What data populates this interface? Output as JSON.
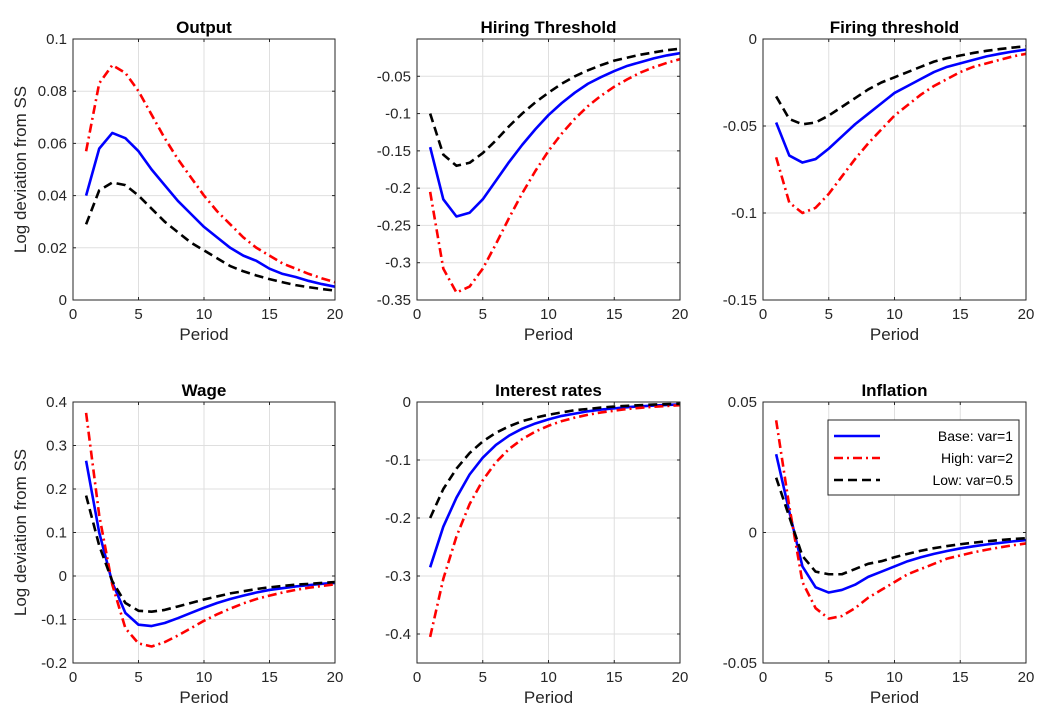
{
  "chart_data": [
    {
      "type": "line",
      "title": "Output",
      "xlabel": "Period",
      "ylabel": "Log deviation from SS",
      "xlim": [
        0,
        20
      ],
      "ylim": [
        0,
        0.1
      ],
      "xticks": [
        "0",
        "5",
        "10",
        "15",
        "20"
      ],
      "yticks": [
        "0",
        "0.02",
        "0.04",
        "0.06",
        "0.08",
        "0.1"
      ],
      "grid": true,
      "x": [
        1,
        2,
        3,
        4,
        5,
        6,
        7,
        8,
        9,
        10,
        11,
        12,
        13,
        14,
        15,
        16,
        17,
        18,
        19,
        20
      ],
      "series": [
        {
          "color": "#0000ff",
          "dash": "solid",
          "values": [
            0.04,
            0.058,
            0.064,
            0.062,
            0.057,
            0.05,
            0.044,
            0.038,
            0.033,
            0.028,
            0.024,
            0.02,
            0.017,
            0.015,
            0.012,
            0.01,
            0.0088,
            0.0073,
            0.0061,
            0.0051
          ]
        },
        {
          "color": "#ff0000",
          "dash": "dashdot",
          "values": [
            0.057,
            0.083,
            0.09,
            0.087,
            0.08,
            0.071,
            0.062,
            0.054,
            0.047,
            0.04,
            0.034,
            0.029,
            0.024,
            0.02,
            0.017,
            0.014,
            0.012,
            0.01,
            0.0083,
            0.0068
          ]
        },
        {
          "color": "#000000",
          "dash": "dashed",
          "values": [
            0.029,
            0.042,
            0.045,
            0.044,
            0.04,
            0.035,
            0.03,
            0.026,
            0.022,
            0.019,
            0.016,
            0.013,
            0.011,
            0.0094,
            0.008,
            0.0068,
            0.0057,
            0.0049,
            0.0042,
            0.0036
          ]
        }
      ]
    },
    {
      "type": "line",
      "title": "Hiring Threshold",
      "xlabel": "Period",
      "ylabel": "",
      "xlim": [
        0,
        20
      ],
      "ylim": [
        -0.35,
        0
      ],
      "xticks": [
        "0",
        "5",
        "10",
        "15",
        "20"
      ],
      "yticks": [
        "-0.35",
        "-0.3",
        "-0.25",
        "-0.2",
        "-0.15",
        "-0.1",
        "-0.05"
      ],
      "grid": true,
      "x": [
        1,
        2,
        3,
        4,
        5,
        6,
        7,
        8,
        9,
        10,
        11,
        12,
        13,
        14,
        15,
        16,
        17,
        18,
        19,
        20
      ],
      "series": [
        {
          "color": "#0000ff",
          "dash": "solid",
          "values": [
            -0.145,
            -0.215,
            -0.238,
            -0.233,
            -0.215,
            -0.19,
            -0.165,
            -0.142,
            -0.121,
            -0.102,
            -0.086,
            -0.072,
            -0.06,
            -0.051,
            -0.043,
            -0.036,
            -0.031,
            -0.026,
            -0.022,
            -0.019
          ]
        },
        {
          "color": "#ff0000",
          "dash": "dashdot",
          "values": [
            -0.205,
            -0.308,
            -0.34,
            -0.332,
            -0.308,
            -0.275,
            -0.24,
            -0.207,
            -0.177,
            -0.15,
            -0.127,
            -0.107,
            -0.09,
            -0.076,
            -0.064,
            -0.054,
            -0.045,
            -0.038,
            -0.032,
            -0.027
          ]
        },
        {
          "color": "#000000",
          "dash": "dashed",
          "values": [
            -0.1,
            -0.155,
            -0.17,
            -0.166,
            -0.153,
            -0.136,
            -0.117,
            -0.1,
            -0.085,
            -0.072,
            -0.06,
            -0.05,
            -0.042,
            -0.035,
            -0.029,
            -0.025,
            -0.021,
            -0.018,
            -0.015,
            -0.013
          ]
        }
      ]
    },
    {
      "type": "line",
      "title": "Firing threshold",
      "xlabel": "Period",
      "ylabel": "",
      "xlim": [
        0,
        20
      ],
      "ylim": [
        -0.15,
        0
      ],
      "xticks": [
        "0",
        "5",
        "10",
        "15",
        "20"
      ],
      "yticks": [
        "-0.15",
        "-0.1",
        "-0.05",
        "0"
      ],
      "grid": true,
      "x": [
        1,
        2,
        3,
        4,
        5,
        6,
        7,
        8,
        9,
        10,
        11,
        12,
        13,
        14,
        15,
        16,
        17,
        18,
        19,
        20
      ],
      "series": [
        {
          "color": "#0000ff",
          "dash": "solid",
          "values": [
            -0.048,
            -0.067,
            -0.071,
            -0.069,
            -0.063,
            -0.056,
            -0.049,
            -0.043,
            -0.037,
            -0.031,
            -0.027,
            -0.023,
            -0.019,
            -0.016,
            -0.014,
            -0.012,
            -0.01,
            -0.0085,
            -0.0072,
            -0.0061
          ]
        },
        {
          "color": "#ff0000",
          "dash": "dashdot",
          "values": [
            -0.068,
            -0.094,
            -0.1,
            -0.097,
            -0.089,
            -0.079,
            -0.069,
            -0.06,
            -0.052,
            -0.044,
            -0.038,
            -0.032,
            -0.027,
            -0.023,
            -0.019,
            -0.016,
            -0.014,
            -0.012,
            -0.01,
            -0.0085
          ]
        },
        {
          "color": "#000000",
          "dash": "dashed",
          "values": [
            -0.033,
            -0.046,
            -0.049,
            -0.048,
            -0.044,
            -0.039,
            -0.034,
            -0.029,
            -0.025,
            -0.022,
            -0.019,
            -0.016,
            -0.013,
            -0.011,
            -0.0095,
            -0.008,
            -0.0068,
            -0.0058,
            -0.0049,
            -0.0042
          ]
        }
      ]
    },
    {
      "type": "line",
      "title": "Wage",
      "xlabel": "Period",
      "ylabel": "Log deviation from SS",
      "xlim": [
        0,
        20
      ],
      "ylim": [
        -0.2,
        0.4
      ],
      "xticks": [
        "0",
        "5",
        "10",
        "15",
        "20"
      ],
      "yticks": [
        "-0.2",
        "-0.1",
        "0",
        "0.1",
        "0.2",
        "0.3",
        "0.4"
      ],
      "grid": true,
      "x": [
        1,
        2,
        3,
        4,
        5,
        6,
        7,
        8,
        9,
        10,
        11,
        12,
        13,
        14,
        15,
        16,
        17,
        18,
        19,
        20
      ],
      "series": [
        {
          "color": "#0000ff",
          "dash": "solid",
          "values": [
            0.265,
            0.1,
            -0.015,
            -0.085,
            -0.112,
            -0.115,
            -0.108,
            -0.097,
            -0.085,
            -0.073,
            -0.062,
            -0.053,
            -0.045,
            -0.038,
            -0.032,
            -0.028,
            -0.024,
            -0.021,
            -0.018,
            -0.016
          ]
        },
        {
          "color": "#ff0000",
          "dash": "dashdot",
          "values": [
            0.375,
            0.14,
            -0.02,
            -0.12,
            -0.155,
            -0.162,
            -0.152,
            -0.137,
            -0.12,
            -0.103,
            -0.088,
            -0.075,
            -0.063,
            -0.053,
            -0.045,
            -0.038,
            -0.032,
            -0.027,
            -0.023,
            -0.019
          ]
        },
        {
          "color": "#000000",
          "dash": "dashed",
          "values": [
            0.185,
            0.07,
            -0.012,
            -0.062,
            -0.08,
            -0.082,
            -0.078,
            -0.07,
            -0.062,
            -0.054,
            -0.047,
            -0.04,
            -0.035,
            -0.03,
            -0.026,
            -0.023,
            -0.02,
            -0.018,
            -0.016,
            -0.014
          ]
        }
      ]
    },
    {
      "type": "line",
      "title": "Interest rates",
      "xlabel": "Period",
      "ylabel": "",
      "xlim": [
        0,
        20
      ],
      "ylim": [
        -0.45,
        0
      ],
      "xticks": [
        "0",
        "5",
        "10",
        "15",
        "20"
      ],
      "yticks": [
        "-0.4",
        "-0.3",
        "-0.2",
        "-0.1",
        "0"
      ],
      "grid": true,
      "x": [
        1,
        2,
        3,
        4,
        5,
        6,
        7,
        8,
        9,
        10,
        11,
        12,
        13,
        14,
        15,
        16,
        17,
        18,
        19,
        20
      ],
      "series": [
        {
          "color": "#0000ff",
          "dash": "solid",
          "values": [
            -0.285,
            -0.215,
            -0.165,
            -0.125,
            -0.096,
            -0.074,
            -0.058,
            -0.046,
            -0.037,
            -0.03,
            -0.024,
            -0.02,
            -0.016,
            -0.013,
            -0.011,
            -0.009,
            -0.0074,
            -0.0061,
            -0.005,
            -0.0042
          ]
        },
        {
          "color": "#ff0000",
          "dash": "dashdot",
          "values": [
            -0.405,
            -0.305,
            -0.232,
            -0.176,
            -0.135,
            -0.104,
            -0.081,
            -0.064,
            -0.051,
            -0.041,
            -0.033,
            -0.027,
            -0.022,
            -0.018,
            -0.015,
            -0.012,
            -0.01,
            -0.0083,
            -0.0068,
            -0.0056
          ]
        },
        {
          "color": "#000000",
          "dash": "dashed",
          "values": [
            -0.2,
            -0.15,
            -0.115,
            -0.088,
            -0.068,
            -0.053,
            -0.042,
            -0.033,
            -0.027,
            -0.022,
            -0.018,
            -0.014,
            -0.012,
            -0.0096,
            -0.0079,
            -0.0065,
            -0.0054,
            -0.0045,
            -0.0037,
            -0.0031
          ]
        }
      ]
    },
    {
      "type": "line",
      "title": "Inflation",
      "xlabel": "Period",
      "ylabel": "",
      "xlim": [
        0,
        20
      ],
      "ylim": [
        -0.05,
        0.05
      ],
      "xticks": [
        "0",
        "5",
        "10",
        "15",
        "20"
      ],
      "yticks": [
        "-0.05",
        "0",
        "0.05"
      ],
      "grid": true,
      "legend": {
        "location": "top-right",
        "entries": [
          "Base: var=1",
          "High: var=2",
          "Low: var=0.5"
        ]
      },
      "x": [
        1,
        2,
        3,
        4,
        5,
        6,
        7,
        8,
        9,
        10,
        11,
        12,
        13,
        14,
        15,
        16,
        17,
        18,
        19,
        20
      ],
      "series": [
        {
          "name": "Base: var=1",
          "color": "#0000ff",
          "dash": "solid",
          "values": [
            0.03,
            0.008,
            -0.013,
            -0.021,
            -0.023,
            -0.022,
            -0.02,
            -0.017,
            -0.015,
            -0.013,
            -0.011,
            -0.0095,
            -0.0082,
            -0.0071,
            -0.0061,
            -0.0053,
            -0.0046,
            -0.004,
            -0.0034,
            -0.0029
          ]
        },
        {
          "name": "High: var=2",
          "color": "#ff0000",
          "dash": "dashdot",
          "values": [
            0.043,
            0.01,
            -0.019,
            -0.029,
            -0.033,
            -0.032,
            -0.029,
            -0.025,
            -0.022,
            -0.019,
            -0.016,
            -0.014,
            -0.012,
            -0.01,
            -0.0088,
            -0.0076,
            -0.0066,
            -0.0057,
            -0.0049,
            -0.0042
          ]
        },
        {
          "name": "Low: var=0.5",
          "color": "#000000",
          "dash": "dashed",
          "values": [
            0.021,
            0.006,
            -0.009,
            -0.015,
            -0.016,
            -0.016,
            -0.014,
            -0.012,
            -0.011,
            -0.0095,
            -0.0082,
            -0.007,
            -0.006,
            -0.0052,
            -0.0045,
            -0.0039,
            -0.0034,
            -0.0029,
            -0.0025,
            -0.0022
          ]
        }
      ]
    }
  ]
}
